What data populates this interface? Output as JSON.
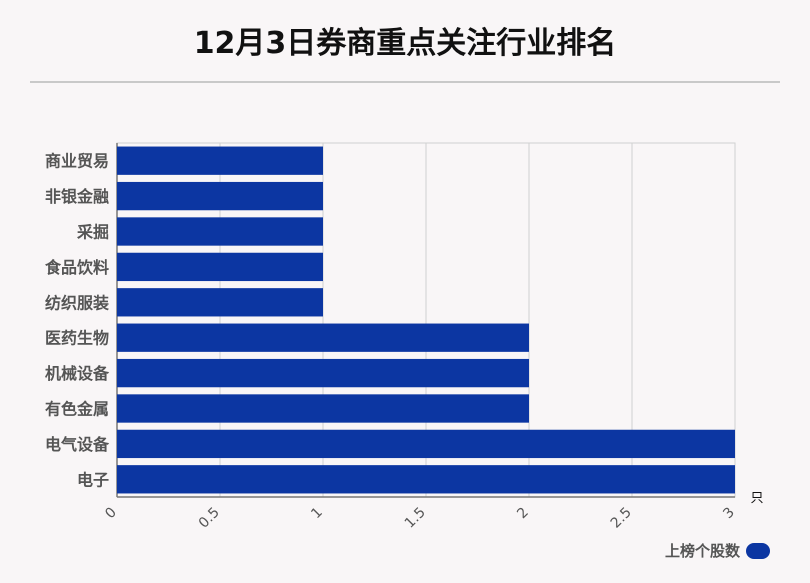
{
  "title": "12月3日券商重点关注行业排名",
  "colors": {
    "bar": "#0c36a2",
    "grid": "#d0d0d0",
    "axis": "#777777",
    "label": "#555555"
  },
  "chart_data": {
    "type": "bar",
    "orientation": "horizontal",
    "categories": [
      "商业贸易",
      "非银金融",
      "采掘",
      "食品饮料",
      "纺织服装",
      "医药生物",
      "机械设备",
      "有色金属",
      "电气设备",
      "电子"
    ],
    "series": [
      {
        "name": "上榜个股数",
        "values": [
          1,
          1,
          1,
          1,
          1,
          2,
          2,
          2,
          3,
          3
        ]
      }
    ],
    "xlim": [
      0,
      3
    ],
    "xticks": [
      "0",
      "0.5",
      "1",
      "1.5",
      "2",
      "2.5",
      "3"
    ],
    "xunit": "只",
    "grid": true,
    "legend": "bottom-right"
  }
}
